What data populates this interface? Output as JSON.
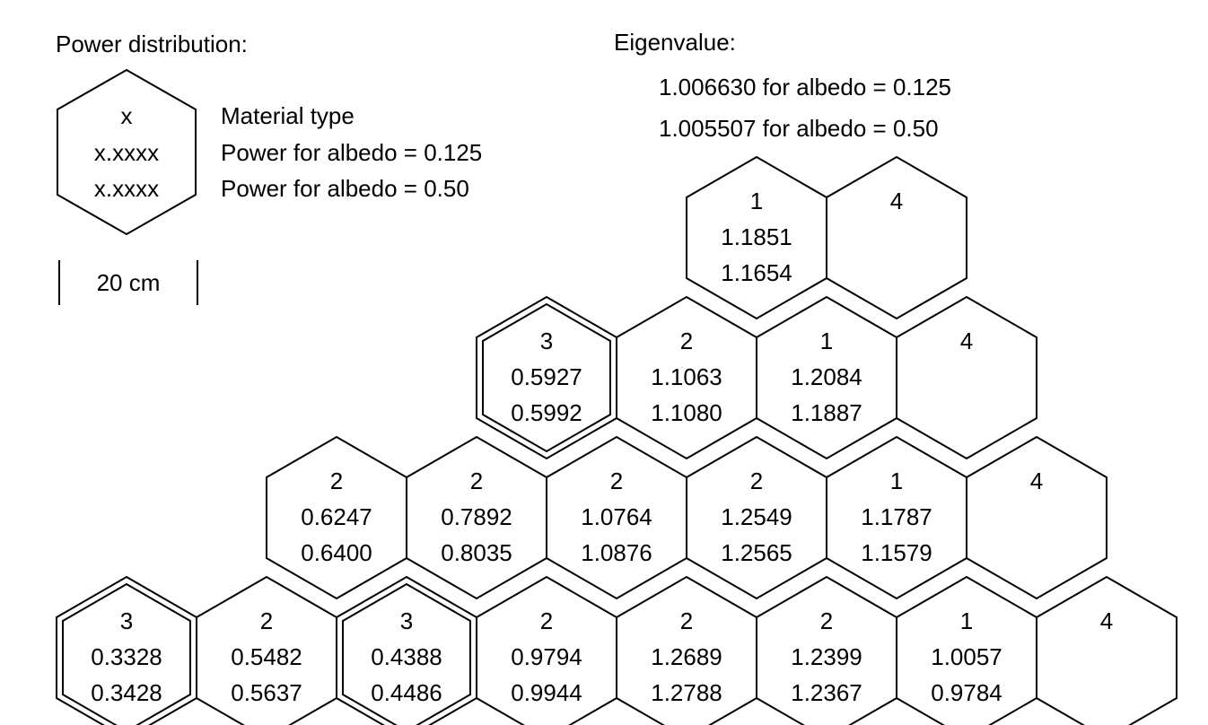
{
  "header": {
    "power_title": "Power distribution:",
    "eigen_title": "Eigenvalue:",
    "eigen_line1": "1.006630 for albedo = 0.125",
    "eigen_line2": "1.005507 for albedo = 0.50"
  },
  "legend": {
    "hex_line1": "x",
    "hex_line2": "x.xxxx",
    "hex_line3": "x.xxxx",
    "desc_line1": "Material type",
    "desc_line2": "Power for albedo = 0.125",
    "desc_line3": "Power for albedo = 0.50",
    "scale_label": "20 cm"
  },
  "rows": [
    [
      {
        "type": "1",
        "p1": "1.1851",
        "p2": "1.1654",
        "highlight": false
      },
      {
        "type": "4",
        "p1": "",
        "p2": "",
        "highlight": false
      }
    ],
    [
      {
        "type": "3",
        "p1": "0.5927",
        "p2": "0.5992",
        "highlight": true
      },
      {
        "type": "2",
        "p1": "1.1063",
        "p2": "1.1080",
        "highlight": false
      },
      {
        "type": "1",
        "p1": "1.2084",
        "p2": "1.1887",
        "highlight": false
      },
      {
        "type": "4",
        "p1": "",
        "p2": "",
        "highlight": false
      }
    ],
    [
      {
        "type": "2",
        "p1": "0.6247",
        "p2": "0.6400",
        "highlight": false
      },
      {
        "type": "2",
        "p1": "0.7892",
        "p2": "0.8035",
        "highlight": false
      },
      {
        "type": "2",
        "p1": "1.0764",
        "p2": "1.0876",
        "highlight": false
      },
      {
        "type": "2",
        "p1": "1.2549",
        "p2": "1.2565",
        "highlight": false
      },
      {
        "type": "1",
        "p1": "1.1787",
        "p2": "1.1579",
        "highlight": false
      },
      {
        "type": "4",
        "p1": "",
        "p2": "",
        "highlight": false
      }
    ],
    [
      {
        "type": "3",
        "p1": "0.3328",
        "p2": "0.3428",
        "highlight": true
      },
      {
        "type": "2",
        "p1": "0.5482",
        "p2": "0.5637",
        "highlight": false
      },
      {
        "type": "3",
        "p1": "0.4388",
        "p2": "0.4486",
        "highlight": true
      },
      {
        "type": "2",
        "p1": "0.9794",
        "p2": "0.9944",
        "highlight": false
      },
      {
        "type": "2",
        "p1": "1.2689",
        "p2": "1.2788",
        "highlight": false
      },
      {
        "type": "2",
        "p1": "1.2399",
        "p2": "1.2367",
        "highlight": false
      },
      {
        "type": "1",
        "p1": "1.0057",
        "p2": "0.9784",
        "highlight": false
      },
      {
        "type": "4",
        "p1": "",
        "p2": "",
        "highlight": false
      }
    ]
  ]
}
